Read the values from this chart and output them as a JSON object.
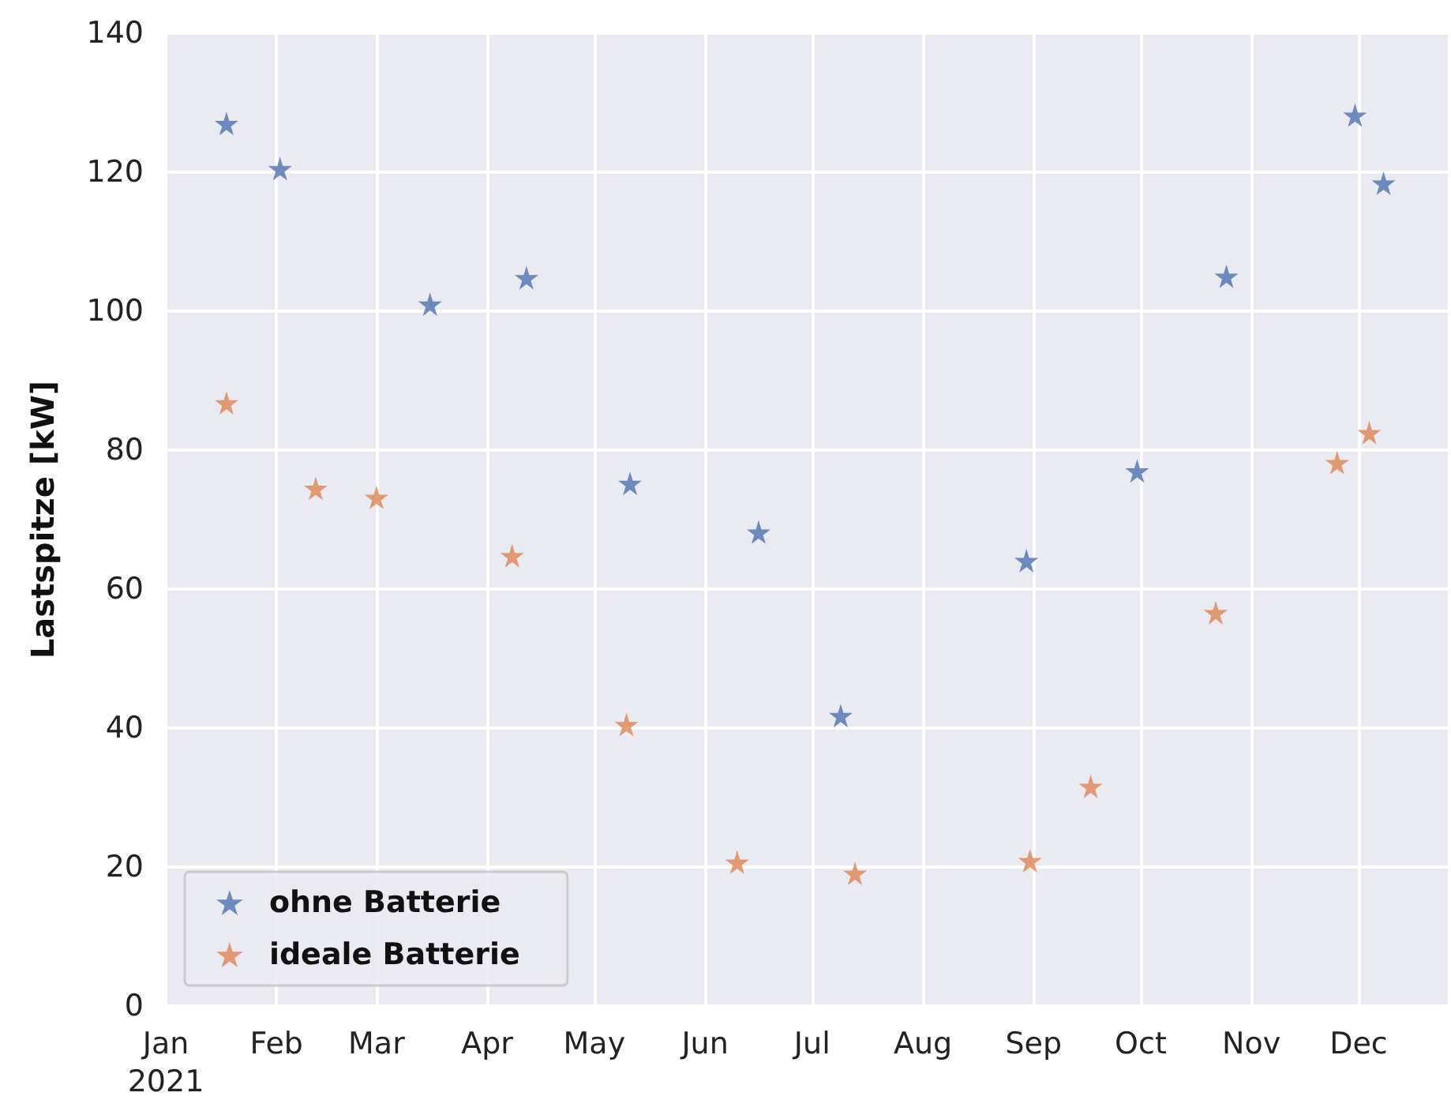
{
  "chart_data": {
    "type": "scatter",
    "ylabel": "Lastspitze [kW]",
    "marker": "star",
    "grid": true,
    "legend": "lower left",
    "xlim": [
      "2021-01-01",
      "2021-12-26"
    ],
    "xticks": [
      {
        "value": "2021-01-01",
        "label": "Jan\n2021"
      },
      {
        "value": "2021-02-01",
        "label": "Feb"
      },
      {
        "value": "2021-03-01",
        "label": "Mar"
      },
      {
        "value": "2021-04-01",
        "label": "Apr"
      },
      {
        "value": "2021-05-01",
        "label": "May"
      },
      {
        "value": "2021-06-01",
        "label": "Jun"
      },
      {
        "value": "2021-07-01",
        "label": "Jul"
      },
      {
        "value": "2021-08-01",
        "label": "Aug"
      },
      {
        "value": "2021-09-01",
        "label": "Sep"
      },
      {
        "value": "2021-10-01",
        "label": "Oct"
      },
      {
        "value": "2021-11-01",
        "label": "Nov"
      },
      {
        "value": "2021-12-01",
        "label": "Dec"
      }
    ],
    "ylim": [
      0,
      140
    ],
    "yticks": [
      0,
      20,
      40,
      60,
      80,
      100,
      120,
      140
    ],
    "series": [
      {
        "name": "ohne Batterie",
        "color": "#4c72b0",
        "x": [
          "2021-01-18",
          "2021-02-02",
          "2021-03-16",
          "2021-04-12",
          "2021-05-11",
          "2021-06-16",
          "2021-07-09",
          "2021-08-30",
          "2021-09-30",
          "2021-10-25",
          "2021-11-30",
          "2021-12-08"
        ],
        "values": [
          127,
          120.5,
          101,
          104.8,
          75.2,
          68.2,
          41.8,
          64.1,
          77,
          105,
          128.2,
          118.4
        ]
      },
      {
        "name": "ideale Batterie",
        "color": "#dd8452",
        "x": [
          "2021-01-18",
          "2021-02-12",
          "2021-03-01",
          "2021-04-08",
          "2021-05-10",
          "2021-06-10",
          "2021-07-13",
          "2021-08-31",
          "2021-09-17",
          "2021-10-22",
          "2021-11-25",
          "2021-12-04"
        ],
        "values": [
          86.8,
          74.5,
          73.2,
          64.8,
          40.5,
          20.7,
          19.1,
          20.9,
          31.6,
          56.6,
          78.2,
          82.5
        ]
      }
    ]
  }
}
